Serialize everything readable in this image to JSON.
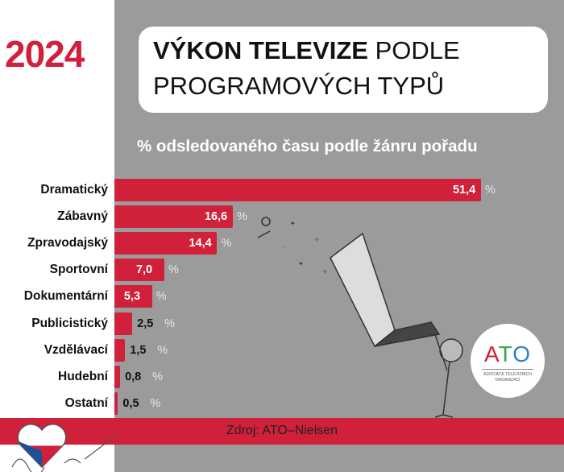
{
  "year": "2024",
  "title": {
    "bold": "VÝKON TELEVIZE",
    "rest_line1": "PODLE",
    "line2": "PROGRAMOVÝCH TYPŮ"
  },
  "chart_data": {
    "type": "bar",
    "orientation": "horizontal",
    "title": "% odsledovaného času podle žánru pořadu",
    "categories": [
      "Dramatický",
      "Zábavný",
      "Zpravodajský",
      "Sportovní",
      "Dokumentární",
      "Publicistický",
      "Vzdělávací",
      "Hudební",
      "Ostatní"
    ],
    "values": [
      51.4,
      16.6,
      14.4,
      7.0,
      5.3,
      2.5,
      1.5,
      0.8,
      0.5
    ],
    "labels": [
      "51,4",
      "16,6",
      "14,4",
      "7,0",
      "5,3",
      "2,5",
      "1,5",
      "0,8",
      "0,5"
    ],
    "unit": "%",
    "bar_color": "#d0203a",
    "grid": false
  },
  "source": "Zdroj: ATO–Nielsen",
  "logo": {
    "text": "ATO",
    "subtitle": "ASOCIACE TELEVIZNÍCH ORGANIZACÍ",
    "colors": [
      "#d0203a",
      "#3aa64a",
      "#2a7fd0"
    ]
  },
  "colors": {
    "accent": "#d0203a",
    "background": "#9b9b9b"
  }
}
